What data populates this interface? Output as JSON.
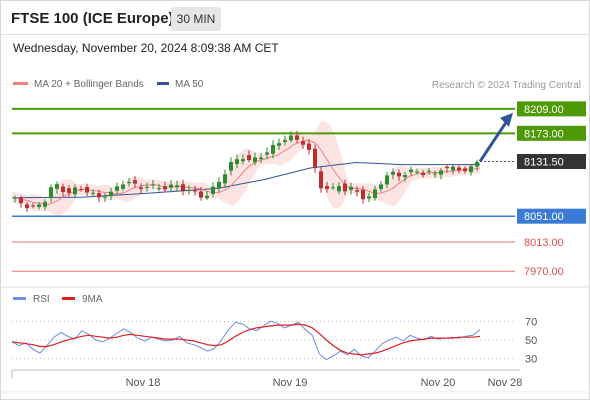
{
  "header": {
    "title": "FTSE 100 (ICE Europe)",
    "timeframe": "30 MIN",
    "timestamp": "Wednesday, November 20, 2024 8:09:38 AM CET"
  },
  "legend": {
    "items": [
      "MA 20 + Bollinger Bands",
      "MA 50"
    ],
    "credit": "Research © 2024 Trading Central"
  },
  "colors": {
    "resistance": "#4e9a06",
    "support_primary": "#3a7bd5",
    "support_secondary": "#e05050",
    "current_price": "#333333",
    "candle_up": "#2e8b2e",
    "candle_down": "#b83030",
    "ma20": "#f08080",
    "ma50": "#2f5597",
    "bollinger_fill": "#fde4e4",
    "rsi": "#6a8ee6",
    "rsi_ma": "#e02020"
  },
  "rsi_legend": [
    "RSI",
    "9MA"
  ],
  "chart_data": [
    {
      "type": "candlestick",
      "title": "FTSE 100 (ICE Europe)",
      "timeframe": "30 MIN",
      "x_ticks": [
        "Nov 18",
        "Nov 19",
        "Nov 20",
        "Nov 28"
      ],
      "ylim": [
        7960,
        8225
      ],
      "levels": [
        {
          "label": "8209.00",
          "value": 8209.0,
          "kind": "resistance"
        },
        {
          "label": "8173.00",
          "value": 8173.0,
          "kind": "resistance"
        },
        {
          "label": "8131.50",
          "value": 8131.5,
          "kind": "current"
        },
        {
          "label": "8051.00",
          "value": 8051.0,
          "kind": "support"
        },
        {
          "label": "8013.00",
          "value": 8013.0,
          "kind": "support_minor"
        },
        {
          "label": "7970.00",
          "value": 7970.0,
          "kind": "support_minor"
        }
      ],
      "series": [
        {
          "name": "MA 20 + Bollinger Bands"
        },
        {
          "name": "MA 50"
        }
      ],
      "price_path": [
        [
          0,
          8078
        ],
        [
          3,
          8075
        ],
        [
          6,
          8070
        ],
        [
          9,
          8062
        ],
        [
          12,
          8066
        ],
        [
          15,
          8070
        ],
        [
          18,
          8092
        ],
        [
          21,
          8096
        ],
        [
          24,
          8088
        ],
        [
          27,
          8085
        ],
        [
          30,
          8094
        ],
        [
          33,
          8090
        ],
        [
          36,
          8084
        ],
        [
          39,
          8078
        ],
        [
          42,
          8083
        ],
        [
          45,
          8086
        ],
        [
          48,
          8096
        ],
        [
          51,
          8104
        ],
        [
          54,
          8098
        ],
        [
          57,
          8092
        ],
        [
          60,
          8096
        ],
        [
          63,
          8095
        ],
        [
          66,
          8092
        ],
        [
          69,
          8094
        ],
        [
          72,
          8097
        ],
        [
          75,
          8092
        ],
        [
          78,
          8090
        ],
        [
          81,
          8085
        ],
        [
          84,
          8080
        ],
        [
          87,
          8083
        ],
        [
          90,
          8096
        ],
        [
          93,
          8108
        ],
        [
          96,
          8127
        ],
        [
          99,
          8133
        ],
        [
          102,
          8138
        ],
        [
          105,
          8132
        ],
        [
          108,
          8136
        ],
        [
          111,
          8142
        ],
        [
          114,
          8150
        ],
        [
          117,
          8158
        ],
        [
          120,
          8165
        ],
        [
          123,
          8167
        ],
        [
          126,
          8162
        ],
        [
          129,
          8158
        ],
        [
          132,
          8140
        ],
        [
          135,
          8096
        ],
        [
          138,
          8092
        ],
        [
          141,
          8090
        ],
        [
          144,
          8097
        ],
        [
          147,
          8088
        ],
        [
          150,
          8093
        ],
        [
          153,
          8082
        ],
        [
          156,
          8075
        ],
        [
          159,
          8086
        ],
        [
          162,
          8100
        ],
        [
          165,
          8112
        ],
        [
          168,
          8114
        ],
        [
          171,
          8110
        ],
        [
          174,
          8116
        ],
        [
          177,
          8118
        ],
        [
          180,
          8114
        ],
        [
          183,
          8116
        ],
        [
          186,
          8112
        ],
        [
          189,
          8124
        ],
        [
          192,
          8120
        ],
        [
          195,
          8122
        ],
        [
          198,
          8118
        ],
        [
          201,
          8120
        ],
        [
          204,
          8131.5
        ]
      ],
      "ma50_path": [
        [
          0,
          8078
        ],
        [
          30,
          8079
        ],
        [
          60,
          8085
        ],
        [
          90,
          8092
        ],
        [
          110,
          8105
        ],
        [
          130,
          8122
        ],
        [
          150,
          8130
        ],
        [
          170,
          8127
        ],
        [
          204,
          8127
        ]
      ],
      "forecast": {
        "from": 8131.5,
        "to": 8209.0
      }
    },
    {
      "type": "line",
      "title": "RSI",
      "yticks": [
        70,
        50,
        30
      ],
      "ylim": [
        20,
        80
      ],
      "series": [
        {
          "name": "RSI",
          "values": [
            48,
            44,
            47,
            40,
            36,
            44,
            53,
            58,
            54,
            51,
            60,
            56,
            50,
            48,
            52,
            57,
            62,
            58,
            52,
            49,
            53,
            51,
            49,
            50,
            54,
            47,
            45,
            42,
            38,
            41,
            50,
            61,
            69,
            67,
            62,
            60,
            65,
            70,
            68,
            63,
            66,
            69,
            61,
            55,
            35,
            29,
            33,
            38,
            34,
            40,
            33,
            31,
            38,
            46,
            50,
            53,
            49,
            55,
            52,
            50,
            54,
            51,
            52,
            53,
            52,
            54,
            55,
            61
          ]
        },
        {
          "name": "9MA",
          "values": [
            48,
            47,
            46,
            45,
            43,
            43,
            45,
            48,
            50,
            52,
            54,
            55,
            54,
            53,
            52,
            53,
            55,
            56,
            55,
            54,
            53,
            52,
            51,
            51,
            51,
            50,
            49,
            47,
            45,
            44,
            45,
            49,
            54,
            58,
            61,
            63,
            64,
            65,
            66,
            66,
            66,
            67,
            66,
            63,
            57,
            50,
            44,
            39,
            36,
            35,
            34,
            35,
            36,
            38,
            41,
            44,
            47,
            49,
            50,
            51,
            52,
            52,
            52,
            52,
            53,
            53,
            53,
            54
          ]
        }
      ]
    }
  ]
}
